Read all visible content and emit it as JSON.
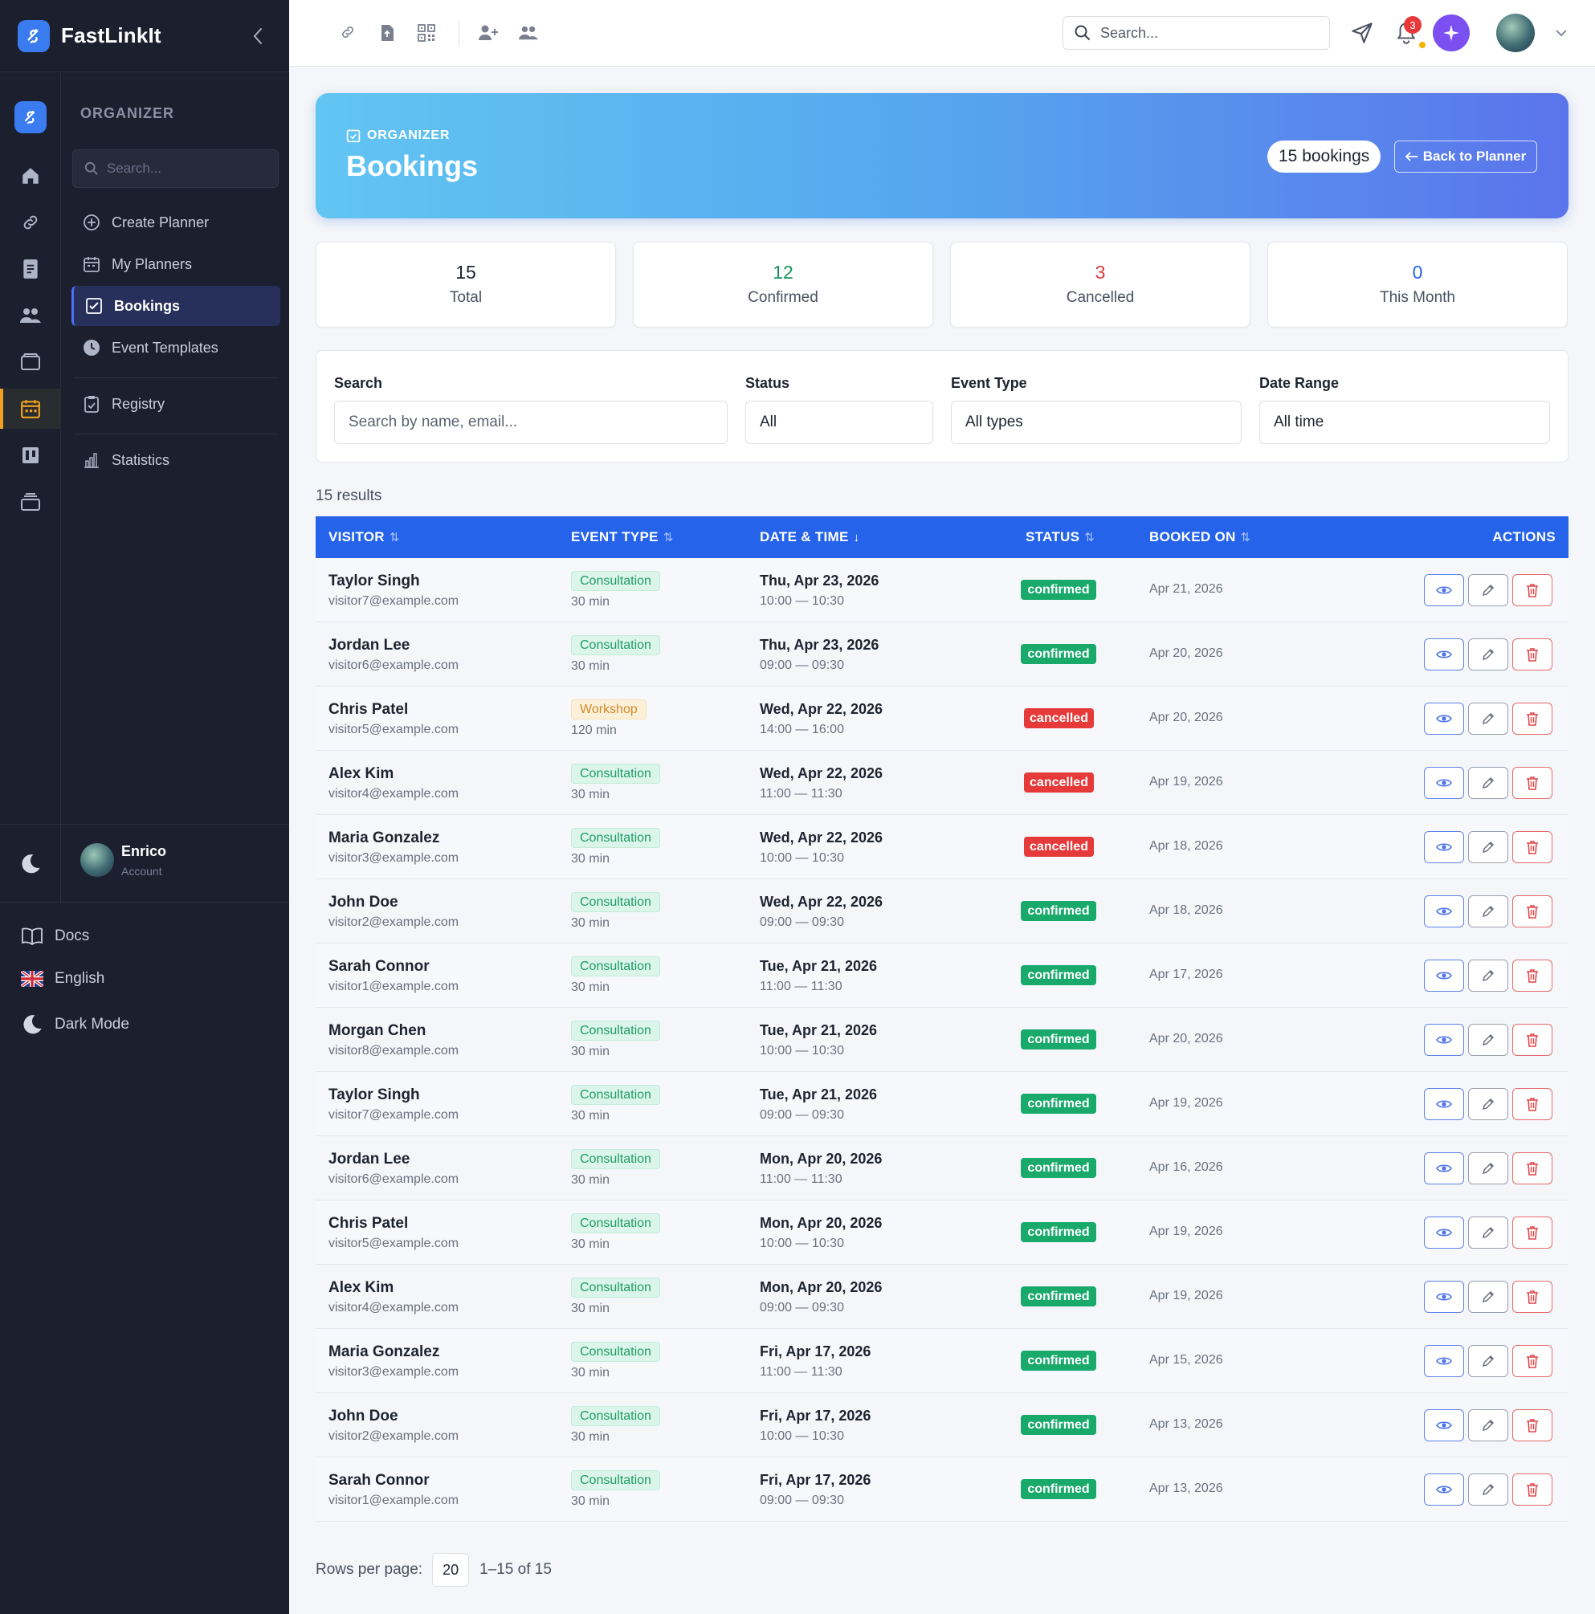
{
  "app": {
    "name": "FastLinkIt"
  },
  "sidebar": {
    "section_title": "ORGANIZER",
    "search_placeholder": "Search...",
    "items": [
      {
        "label": "Create Planner",
        "icon": "plus-circle-icon"
      },
      {
        "label": "My Planners",
        "icon": "calendar-icon"
      },
      {
        "label": "Bookings",
        "icon": "calendar-check-icon",
        "active": true
      },
      {
        "label": "Event Templates",
        "icon": "clock-icon"
      },
      {
        "label": "Registry",
        "icon": "clipboard-icon"
      },
      {
        "label": "Statistics",
        "icon": "bar-chart-icon"
      }
    ],
    "rail_icons": [
      "home-icon",
      "link-icon",
      "document-icon",
      "users-icon",
      "folder-icon",
      "calendar-icon",
      "board-icon",
      "archive-icon"
    ],
    "user": {
      "name": "Enrico",
      "subtitle": "Account"
    },
    "footer": {
      "docs": "Docs",
      "language": "English",
      "dark_mode": "Dark Mode"
    }
  },
  "topbar": {
    "search_placeholder": "Search...",
    "notification_count": "3",
    "icons": [
      "link-icon",
      "upload-file-icon",
      "qr-code-icon",
      "add-user-icon",
      "users-icon",
      "send-icon",
      "bell-icon",
      "sparkle-icon"
    ]
  },
  "hero": {
    "eyebrow": "ORGANIZER",
    "title": "Bookings",
    "count_badge": "15 bookings",
    "back_label": "Back to Planner"
  },
  "stats": [
    {
      "value": "15",
      "label": "Total",
      "color": "#1e2330"
    },
    {
      "value": "12",
      "label": "Confirmed",
      "color": "#18925e"
    },
    {
      "value": "3",
      "label": "Cancelled",
      "color": "#d63a3a"
    },
    {
      "value": "0",
      "label": "This Month",
      "color": "#2563eb"
    }
  ],
  "filters": {
    "search": {
      "label": "Search",
      "placeholder": "Search by name, email..."
    },
    "status": {
      "label": "Status",
      "value": "All"
    },
    "event_type": {
      "label": "Event Type",
      "value": "All types"
    },
    "date_range": {
      "label": "Date Range",
      "value": "All time"
    }
  },
  "results_text": "15 results",
  "table": {
    "columns": [
      "VISITOR",
      "EVENT TYPE",
      "DATE & TIME",
      "STATUS",
      "BOOKED ON",
      "ACTIONS"
    ],
    "sort_glyph": "⇅",
    "sort_active_glyph": "↓",
    "rows": [
      {
        "name": "Taylor Singh",
        "email": "visitor7@example.com",
        "type": "Consultation",
        "duration": "30 min",
        "date": "Thu, Apr 23, 2026",
        "time": "10:00 — 10:30",
        "status": "confirmed",
        "booked": "Apr 21, 2026"
      },
      {
        "name": "Jordan Lee",
        "email": "visitor6@example.com",
        "type": "Consultation",
        "duration": "30 min",
        "date": "Thu, Apr 23, 2026",
        "time": "09:00 — 09:30",
        "status": "confirmed",
        "booked": "Apr 20, 2026"
      },
      {
        "name": "Chris Patel",
        "email": "visitor5@example.com",
        "type": "Workshop",
        "duration": "120 min",
        "date": "Wed, Apr 22, 2026",
        "time": "14:00 — 16:00",
        "status": "cancelled",
        "booked": "Apr 20, 2026"
      },
      {
        "name": "Alex Kim",
        "email": "visitor4@example.com",
        "type": "Consultation",
        "duration": "30 min",
        "date": "Wed, Apr 22, 2026",
        "time": "11:00 — 11:30",
        "status": "cancelled",
        "booked": "Apr 19, 2026"
      },
      {
        "name": "Maria Gonzalez",
        "email": "visitor3@example.com",
        "type": "Consultation",
        "duration": "30 min",
        "date": "Wed, Apr 22, 2026",
        "time": "10:00 — 10:30",
        "status": "cancelled",
        "booked": "Apr 18, 2026"
      },
      {
        "name": "John Doe",
        "email": "visitor2@example.com",
        "type": "Consultation",
        "duration": "30 min",
        "date": "Wed, Apr 22, 2026",
        "time": "09:00 — 09:30",
        "status": "confirmed",
        "booked": "Apr 18, 2026"
      },
      {
        "name": "Sarah Connor",
        "email": "visitor1@example.com",
        "type": "Consultation",
        "duration": "30 min",
        "date": "Tue, Apr 21, 2026",
        "time": "11:00 — 11:30",
        "status": "confirmed",
        "booked": "Apr 17, 2026"
      },
      {
        "name": "Morgan Chen",
        "email": "visitor8@example.com",
        "type": "Consultation",
        "duration": "30 min",
        "date": "Tue, Apr 21, 2026",
        "time": "10:00 — 10:30",
        "status": "confirmed",
        "booked": "Apr 20, 2026"
      },
      {
        "name": "Taylor Singh",
        "email": "visitor7@example.com",
        "type": "Consultation",
        "duration": "30 min",
        "date": "Tue, Apr 21, 2026",
        "time": "09:00 — 09:30",
        "status": "confirmed",
        "booked": "Apr 19, 2026"
      },
      {
        "name": "Jordan Lee",
        "email": "visitor6@example.com",
        "type": "Consultation",
        "duration": "30 min",
        "date": "Mon, Apr 20, 2026",
        "time": "11:00 — 11:30",
        "status": "confirmed",
        "booked": "Apr 16, 2026"
      },
      {
        "name": "Chris Patel",
        "email": "visitor5@example.com",
        "type": "Consultation",
        "duration": "30 min",
        "date": "Mon, Apr 20, 2026",
        "time": "10:00 — 10:30",
        "status": "confirmed",
        "booked": "Apr 19, 2026"
      },
      {
        "name": "Alex Kim",
        "email": "visitor4@example.com",
        "type": "Consultation",
        "duration": "30 min",
        "date": "Mon, Apr 20, 2026",
        "time": "09:00 — 09:30",
        "status": "confirmed",
        "booked": "Apr 19, 2026"
      },
      {
        "name": "Maria Gonzalez",
        "email": "visitor3@example.com",
        "type": "Consultation",
        "duration": "30 min",
        "date": "Fri, Apr 17, 2026",
        "time": "11:00 — 11:30",
        "status": "confirmed",
        "booked": "Apr 15, 2026"
      },
      {
        "name": "John Doe",
        "email": "visitor2@example.com",
        "type": "Consultation",
        "duration": "30 min",
        "date": "Fri, Apr 17, 2026",
        "time": "10:00 — 10:30",
        "status": "confirmed",
        "booked": "Apr 13, 2026"
      },
      {
        "name": "Sarah Connor",
        "email": "visitor1@example.com",
        "type": "Consultation",
        "duration": "30 min",
        "date": "Fri, Apr 17, 2026",
        "time": "09:00 — 09:30",
        "status": "confirmed",
        "booked": "Apr 13, 2026"
      }
    ]
  },
  "pagination": {
    "rows_label": "Rows per page:",
    "rows_value": "20",
    "range": "1–15 of 15"
  },
  "colors": {
    "accent": "#2563eb",
    "confirmed": "#18a96b",
    "cancelled": "#e5393a",
    "sidebar_bg": "#1b1f2e"
  }
}
